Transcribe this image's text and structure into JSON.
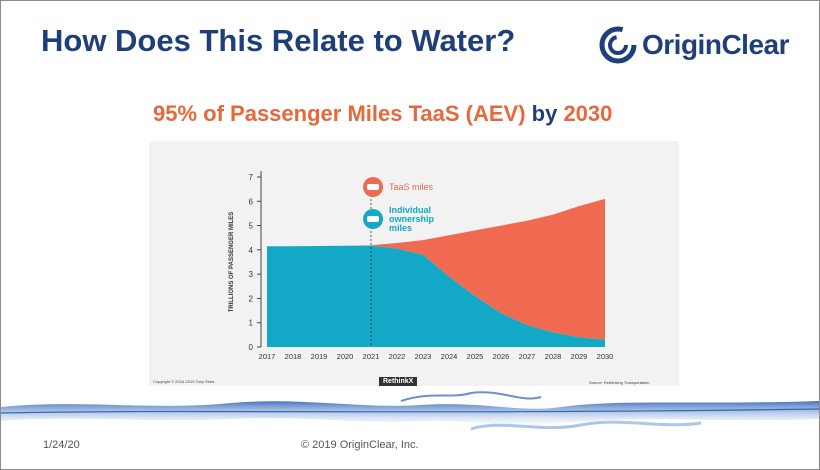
{
  "slide": {
    "title": "How Does This Relate to Water?",
    "logo_text": "OriginClear",
    "subtitle_num": "95%",
    "subtitle_text": " of Passenger Miles TaaS (AEV) ",
    "subtitle_by": "by",
    "subtitle_year": " 2030",
    "footer_date": "1/24/20",
    "footer_copyright": "© 2019 OriginClear, Inc.",
    "chart_copyright": "Copyright © 2016-2019 Tony Seba",
    "chart_brand": "RethinkX",
    "chart_source": "Source: Rethinking Transportation"
  },
  "colors": {
    "title": "#1f3f7a",
    "taas": "#ef6a50",
    "individual": "#13a9c6",
    "accent": "#e8673b"
  },
  "chart_data": {
    "type": "area",
    "stacked": true,
    "ylabel": "TRILLIONS OF PASSENGER MILES",
    "ylim": [
      0,
      7
    ],
    "yticks": [
      0,
      1,
      2,
      3,
      4,
      5,
      6,
      7
    ],
    "x": [
      2017,
      2018,
      2019,
      2020,
      2021,
      2022,
      2023,
      2024,
      2025,
      2026,
      2027,
      2028,
      2029,
      2030
    ],
    "marker_year": 2021,
    "legend_position": "top-center",
    "series": [
      {
        "name": "Individual ownership miles",
        "color": "#13a9c6",
        "values": [
          4.15,
          4.15,
          4.16,
          4.17,
          4.17,
          4.05,
          3.8,
          2.9,
          2.1,
          1.4,
          0.9,
          0.6,
          0.4,
          0.3
        ]
      },
      {
        "name": "TaaS miles",
        "color": "#ef6a50",
        "values": [
          0,
          0,
          0,
          0,
          0.02,
          0.23,
          0.6,
          1.7,
          2.7,
          3.6,
          4.3,
          4.85,
          5.4,
          5.8
        ]
      }
    ]
  }
}
